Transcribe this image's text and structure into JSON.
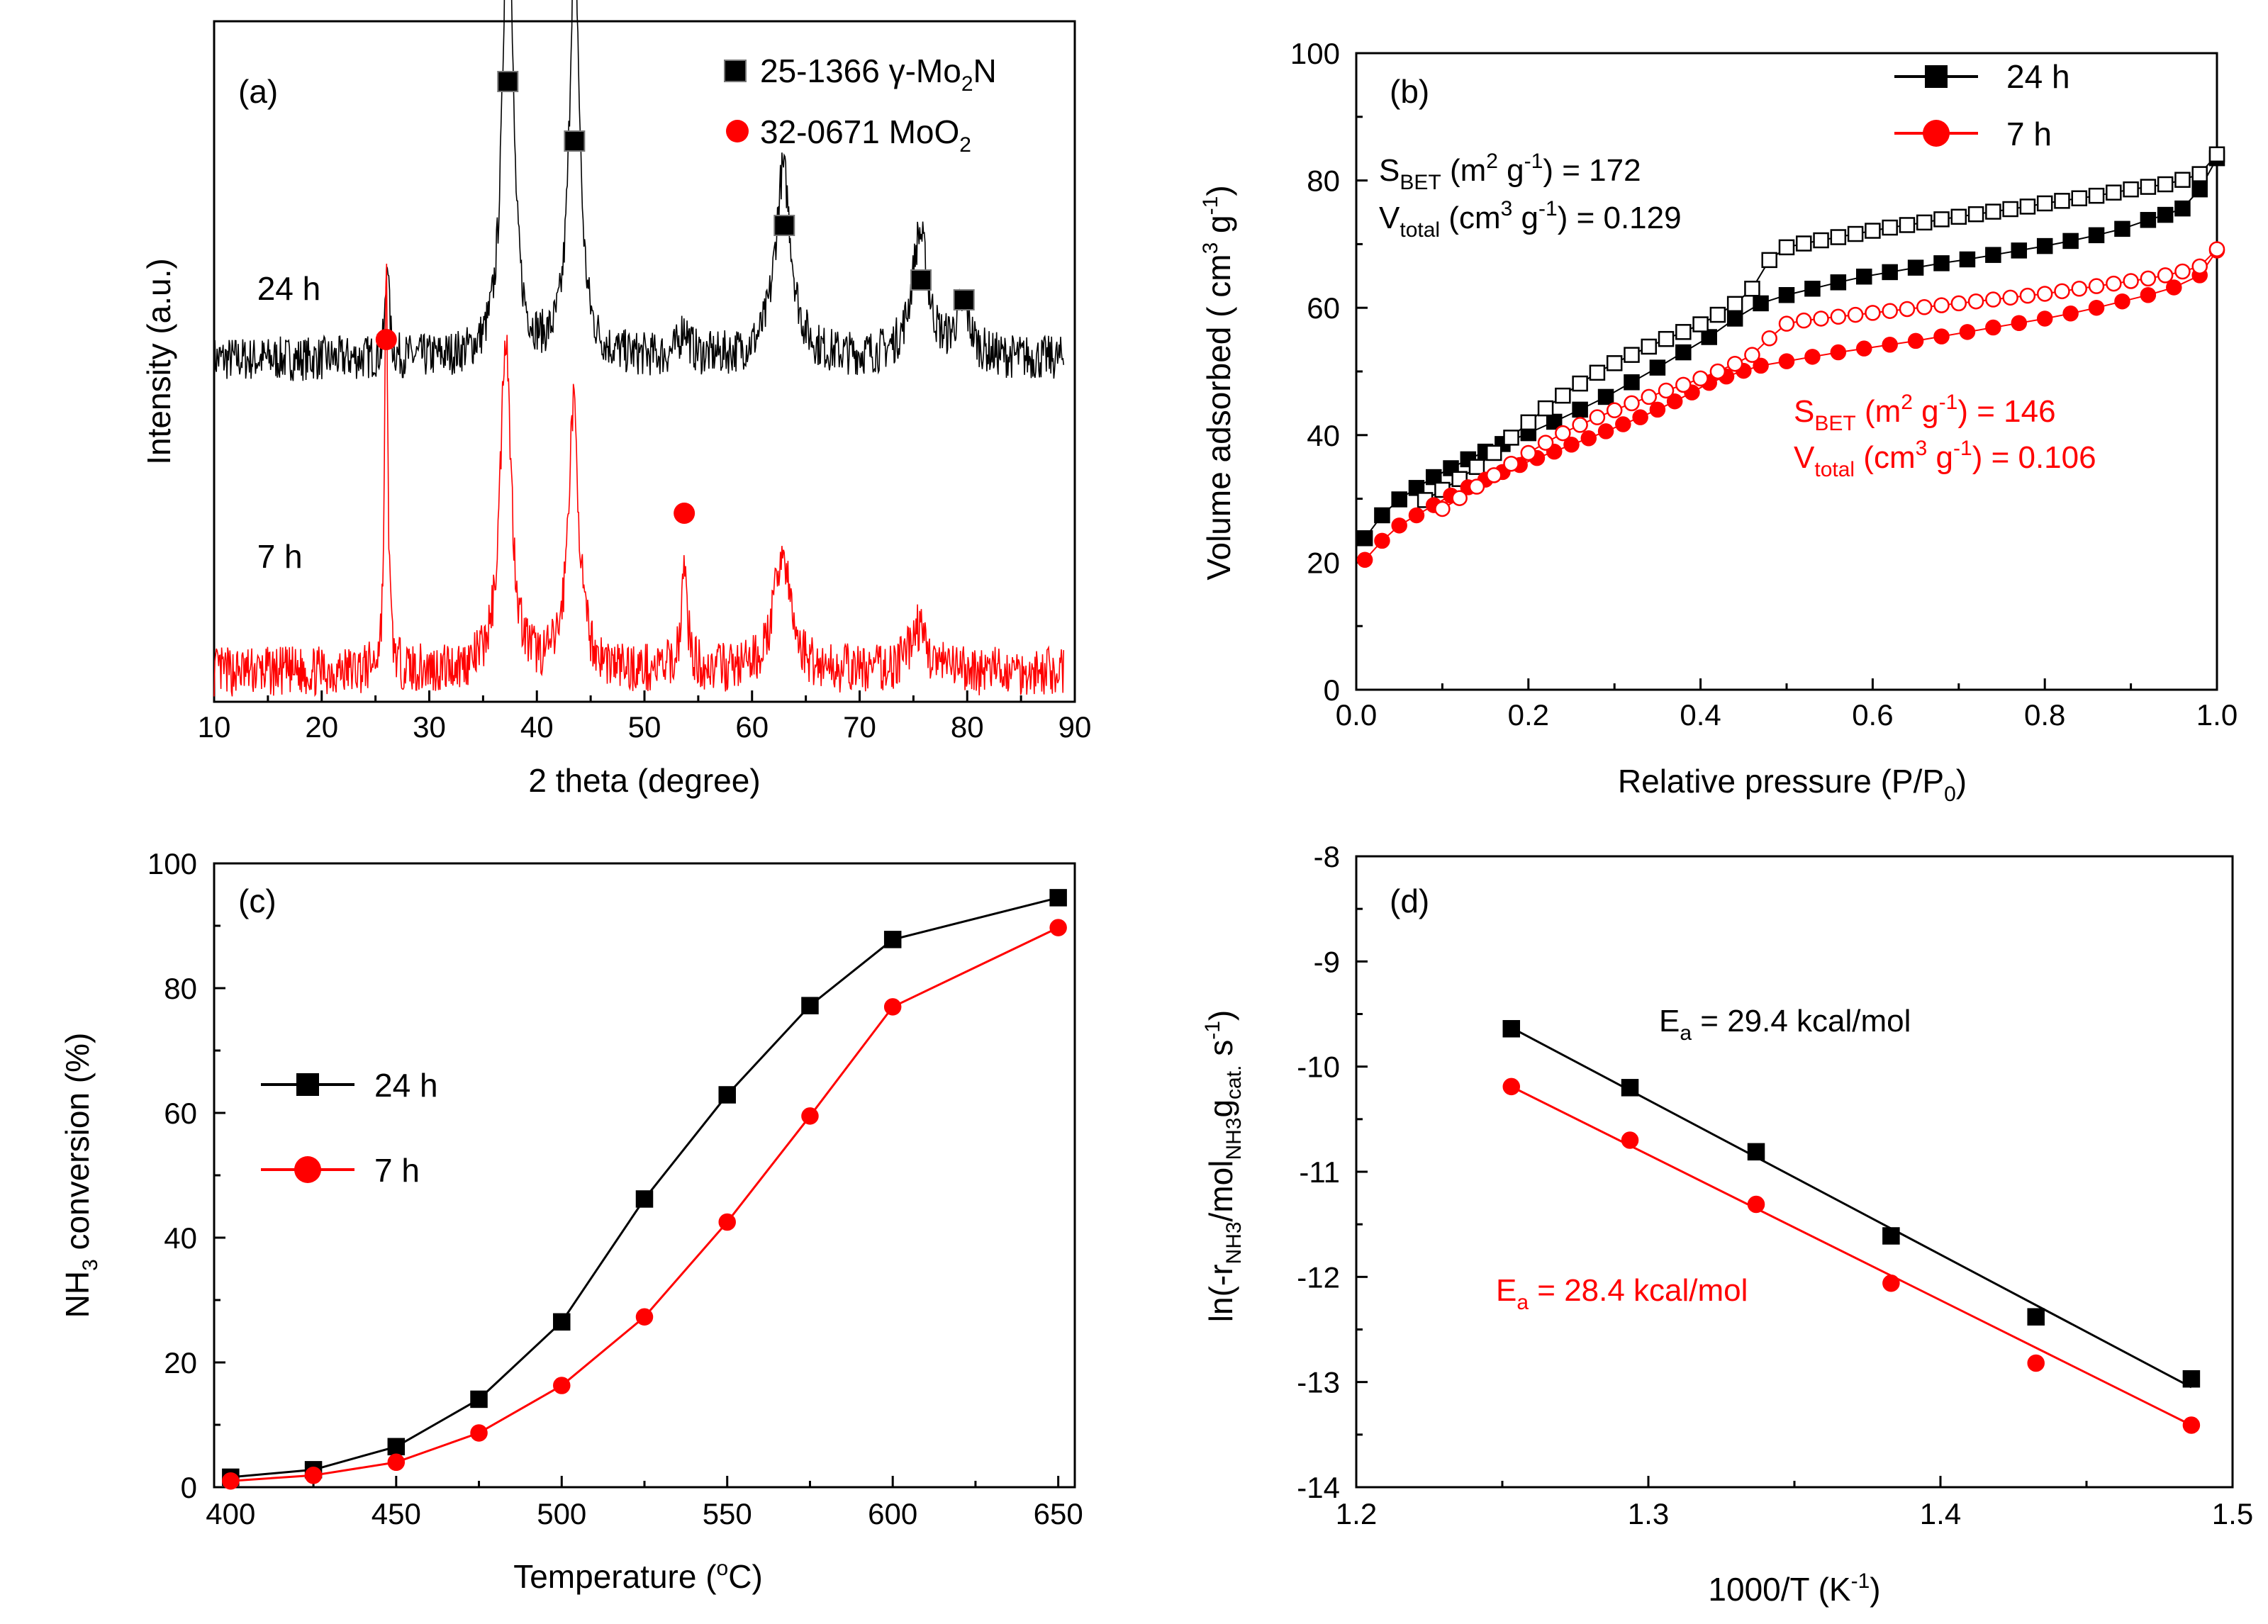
{
  "colors": {
    "black": "#000000",
    "red": "#ff0000"
  },
  "chart_data": [
    {
      "panel": "(a)",
      "type": "line",
      "xlabel": "2 theta (degree)",
      "ylabel": "Intensity (a.u.)",
      "xlim": [
        10,
        90
      ],
      "xticks": [
        "10",
        "20",
        "30",
        "40",
        "50",
        "60",
        "70",
        "80",
        "90"
      ],
      "legend_position": "top-right",
      "legend": [
        {
          "marker": "square",
          "color": "#000000",
          "text": "25-1366 γ-Mo",
          "sub": "2",
          "tail": "N"
        },
        {
          "marker": "circle",
          "color": "#ff0000",
          "text": "32-0671 MoO",
          "sub": "2",
          "tail": ""
        }
      ],
      "series": [
        {
          "name": "24 h",
          "color": "#000000",
          "baseline": 0.69,
          "noise": 0.045,
          "seed": 7,
          "peaks": [
            [
              26.1,
              0.22,
              0.18
            ],
            [
              37.3,
              1.0,
              0.55
            ],
            [
              43.5,
              0.85,
              0.55
            ],
            [
              53.7,
              0.06,
              0.5
            ],
            [
              62.9,
              0.38,
              0.9
            ],
            [
              75.6,
              0.25,
              0.9
            ],
            [
              79.6,
              0.1,
              0.8
            ]
          ]
        },
        {
          "name": "7 h",
          "color": "#ff0000",
          "baseline": 0.06,
          "noise": 0.05,
          "seed": 13,
          "peaks": [
            [
              26.0,
              0.8,
              0.18
            ],
            [
              37.1,
              0.68,
              0.6
            ],
            [
              43.4,
              0.53,
              0.6
            ],
            [
              53.7,
              0.2,
              0.35
            ],
            [
              62.8,
              0.24,
              0.9
            ],
            [
              75.4,
              0.09,
              0.9
            ]
          ]
        }
      ],
      "markers": [
        {
          "shape": "square",
          "color": "#000000",
          "x": [
            37.3,
            43.5,
            63.0,
            75.7,
            79.7
          ],
          "level": [
            1.25,
            1.13,
            0.96,
            0.85,
            0.81
          ]
        },
        {
          "shape": "circle",
          "color": "#ff0000",
          "x": [
            26.0,
            53.7
          ],
          "level": [
            0.73,
            0.38
          ]
        }
      ],
      "series_labels": [
        {
          "text": "24 h",
          "x": 14,
          "level": 0.81
        },
        {
          "text": "7 h",
          "x": 14,
          "level": 0.27
        }
      ]
    },
    {
      "panel": "(b)",
      "type": "scatter",
      "xlabel": "Relative pressure (P/P",
      "xlabel_sub": "0",
      "xlabel_tail": ")",
      "ylabel": "Volume adsorbed ( cm",
      "xlim": [
        0,
        1.0
      ],
      "ylim": [
        0,
        100
      ],
      "xticks": [
        "0.0",
        "0.2",
        "0.4",
        "0.6",
        "0.8",
        "1.0"
      ],
      "yticks": [
        "0",
        "20",
        "40",
        "60",
        "80",
        "100"
      ],
      "legend_position": "top-right",
      "legend": [
        {
          "name": "24 h",
          "color": "#000000",
          "marker": "square"
        },
        {
          "name": "7 h",
          "color": "#ff0000",
          "marker": "circle"
        }
      ],
      "series": [
        {
          "name": "24 h adsorption",
          "color": "#000000",
          "marker": "square",
          "filled": true,
          "x": [
            0.01,
            0.03,
            0.05,
            0.07,
            0.09,
            0.11,
            0.13,
            0.15,
            0.17,
            0.2,
            0.23,
            0.26,
            0.29,
            0.32,
            0.35,
            0.38,
            0.41,
            0.44,
            0.47,
            0.5,
            0.53,
            0.56,
            0.59,
            0.62,
            0.65,
            0.68,
            0.71,
            0.74,
            0.77,
            0.8,
            0.83,
            0.86,
            0.89,
            0.92,
            0.94,
            0.96,
            0.98,
            1.0
          ],
          "y": [
            23.8,
            27.4,
            29.9,
            31.7,
            33.4,
            34.8,
            36.2,
            37.4,
            38.6,
            40.3,
            42.1,
            44.0,
            46.0,
            48.3,
            50.6,
            53.0,
            55.4,
            58.3,
            60.7,
            62.0,
            63.0,
            64.0,
            64.9,
            65.6,
            66.3,
            67.0,
            67.6,
            68.3,
            69.0,
            69.7,
            70.5,
            71.4,
            72.4,
            73.8,
            74.6,
            75.6,
            78.6,
            83.5
          ]
        },
        {
          "name": "24 h desorption",
          "color": "#000000",
          "marker": "square",
          "filled": false,
          "x": [
            1.0,
            0.98,
            0.96,
            0.94,
            0.92,
            0.9,
            0.88,
            0.86,
            0.84,
            0.82,
            0.8,
            0.78,
            0.76,
            0.74,
            0.72,
            0.7,
            0.68,
            0.66,
            0.64,
            0.62,
            0.6,
            0.58,
            0.56,
            0.54,
            0.52,
            0.5,
            0.48,
            0.46,
            0.44,
            0.42,
            0.4,
            0.38,
            0.36,
            0.34,
            0.32,
            0.3,
            0.28,
            0.26,
            0.24,
            0.22,
            0.2,
            0.18,
            0.16,
            0.14,
            0.12,
            0.1,
            0.08
          ],
          "y": [
            84.1,
            81.0,
            80.1,
            79.4,
            79.0,
            78.6,
            78.1,
            77.6,
            77.2,
            76.8,
            76.4,
            75.9,
            75.5,
            75.1,
            74.7,
            74.3,
            73.9,
            73.4,
            73.0,
            72.6,
            72.1,
            71.6,
            71.1,
            70.6,
            70.1,
            69.5,
            67.5,
            63.0,
            60.6,
            58.9,
            57.4,
            56.2,
            55.1,
            53.9,
            52.6,
            51.3,
            49.8,
            48.1,
            46.2,
            44.2,
            42.0,
            39.6,
            37.2,
            35.0,
            33.1,
            31.4,
            29.8
          ]
        },
        {
          "name": "7 h adsorption",
          "color": "#ff0000",
          "marker": "circle",
          "filled": true,
          "x": [
            0.01,
            0.03,
            0.05,
            0.07,
            0.09,
            0.11,
            0.13,
            0.15,
            0.17,
            0.19,
            0.21,
            0.23,
            0.25,
            0.27,
            0.29,
            0.31,
            0.33,
            0.35,
            0.37,
            0.39,
            0.41,
            0.43,
            0.45,
            0.47,
            0.5,
            0.53,
            0.56,
            0.59,
            0.62,
            0.65,
            0.68,
            0.71,
            0.74,
            0.77,
            0.8,
            0.83,
            0.86,
            0.89,
            0.92,
            0.95,
            0.98,
            1.0
          ],
          "y": [
            20.4,
            23.4,
            25.8,
            27.4,
            29.0,
            30.5,
            31.8,
            33.0,
            34.2,
            35.3,
            36.4,
            37.4,
            38.5,
            39.5,
            40.6,
            41.7,
            42.8,
            44.0,
            45.3,
            46.7,
            48.2,
            49.2,
            50.1,
            50.9,
            51.6,
            52.3,
            53.0,
            53.6,
            54.2,
            54.8,
            55.5,
            56.2,
            56.9,
            57.6,
            58.3,
            59.1,
            60.0,
            61.0,
            62.0,
            63.2,
            65.1,
            69.0
          ]
        },
        {
          "name": "7 h desorption",
          "color": "#ff0000",
          "marker": "circle",
          "filled": false,
          "x": [
            1.0,
            0.98,
            0.96,
            0.94,
            0.92,
            0.9,
            0.88,
            0.86,
            0.84,
            0.82,
            0.8,
            0.78,
            0.76,
            0.74,
            0.72,
            0.7,
            0.68,
            0.66,
            0.64,
            0.62,
            0.6,
            0.58,
            0.56,
            0.54,
            0.52,
            0.5,
            0.48,
            0.46,
            0.44,
            0.42,
            0.4,
            0.38,
            0.36,
            0.34,
            0.32,
            0.3,
            0.28,
            0.26,
            0.24,
            0.22,
            0.2,
            0.18,
            0.16,
            0.14,
            0.12,
            0.1
          ],
          "y": [
            69.2,
            66.5,
            65.7,
            65.1,
            64.6,
            64.2,
            63.8,
            63.4,
            63.0,
            62.6,
            62.2,
            61.9,
            61.6,
            61.3,
            61.0,
            60.7,
            60.4,
            60.1,
            59.8,
            59.5,
            59.2,
            58.9,
            58.6,
            58.3,
            58.0,
            57.5,
            55.2,
            52.6,
            51.2,
            50.0,
            48.9,
            47.9,
            47.0,
            46.0,
            45.0,
            43.9,
            42.8,
            41.6,
            40.3,
            38.8,
            37.2,
            35.5,
            33.7,
            31.9,
            30.1,
            28.4
          ]
        }
      ],
      "annotations": [
        {
          "color": "#000000",
          "pos": "upper-left",
          "line1_pre": "S",
          "line1_sub": "BET",
          "line1_mid": " (m",
          "line1_sup": "2",
          "line1_tail": " g",
          "line1_sup2": "-1",
          "line1_end": ") = 172",
          "line2_pre": "V",
          "line2_sub": "total",
          "line2_mid": " (cm",
          "line2_sup": "3",
          "line2_tail": " g",
          "line2_sup2": "-1",
          "line2_end": ") = 0.129"
        },
        {
          "color": "#ff0000",
          "pos": "lower-right",
          "line1_pre": "S",
          "line1_sub": "BET",
          "line1_mid": " (m",
          "line1_sup": "2",
          "line1_tail": " g",
          "line1_sup2": "-1",
          "line1_end": ") = 146",
          "line2_pre": "V",
          "line2_sub": "total",
          "line2_mid": " (cm",
          "line2_sup": "3",
          "line2_tail": " g",
          "line2_sup2": "-1",
          "line2_end": ") = 0.106"
        }
      ]
    },
    {
      "panel": "(c)",
      "type": "line",
      "xlabel": "Temperature (",
      "xlabel_sup": "o",
      "xlabel_tail": "C)",
      "ylabel_pre": "NH",
      "ylabel_sub": "3",
      "ylabel_tail": " conversion (%)",
      "xlim": [
        395,
        655
      ],
      "ylim": [
        0,
        100
      ],
      "xticks": [
        "400",
        "450",
        "500",
        "550",
        "600",
        "650"
      ],
      "yticks": [
        "0",
        "20",
        "40",
        "60",
        "80",
        "100"
      ],
      "legend_position": "middle-left",
      "series": [
        {
          "name": "24 h",
          "color": "#000000",
          "marker": "square",
          "x": [
            400,
            425,
            450,
            475,
            500,
            525,
            550,
            575,
            600,
            650
          ],
          "y": [
            1.6,
            2.8,
            6.5,
            14.1,
            26.5,
            46.2,
            62.9,
            77.2,
            87.8,
            94.5
          ]
        },
        {
          "name": "7 h",
          "color": "#ff0000",
          "marker": "circle",
          "x": [
            400,
            425,
            450,
            475,
            500,
            525,
            550,
            575,
            600,
            650
          ],
          "y": [
            1.0,
            1.9,
            4.0,
            8.7,
            16.3,
            27.3,
            42.5,
            59.5,
            77.0,
            89.7
          ]
        }
      ]
    },
    {
      "panel": "(d)",
      "type": "scatter",
      "xlabel": "1000/T (K",
      "xlabel_sup": "-1",
      "xlabel_tail": ")",
      "ylabel": "ln(-r",
      "xlim": [
        1.2,
        1.5
      ],
      "ylim": [
        -14,
        -8
      ],
      "xticks": [
        "1.2",
        "1.3",
        "1.4",
        "1.5"
      ],
      "yticks": [
        "-8",
        "-9",
        "-10",
        "-11",
        "-12",
        "-13",
        "-14"
      ],
      "series": [
        {
          "name": "24 h",
          "color": "#000000",
          "marker": "square",
          "x": [
            1.2531,
            1.2937,
            1.3369,
            1.3831,
            1.4327,
            1.4859
          ],
          "y": [
            -9.64,
            -10.2,
            -10.81,
            -11.61,
            -12.38,
            -12.97
          ],
          "fit": [
            [
              1.2531,
              -9.63
            ],
            [
              1.4859,
              -13.05
            ]
          ]
        },
        {
          "name": "7 h",
          "color": "#ff0000",
          "marker": "circle",
          "x": [
            1.2531,
            1.2937,
            1.3369,
            1.3831,
            1.4327,
            1.4859
          ],
          "y": [
            -10.19,
            -10.7,
            -11.31,
            -12.06,
            -12.82,
            -13.41
          ],
          "fit": [
            [
              1.2531,
              -10.19
            ],
            [
              1.4859,
              -13.41
            ]
          ]
        }
      ],
      "annotations": [
        {
          "color": "#000000",
          "pre": "E",
          "sub": "a",
          "text": " = 29.4 kcal/mol"
        },
        {
          "color": "#ff0000",
          "pre": "E",
          "sub": "a",
          "text": " = 28.4 kcal/mol"
        }
      ]
    }
  ]
}
